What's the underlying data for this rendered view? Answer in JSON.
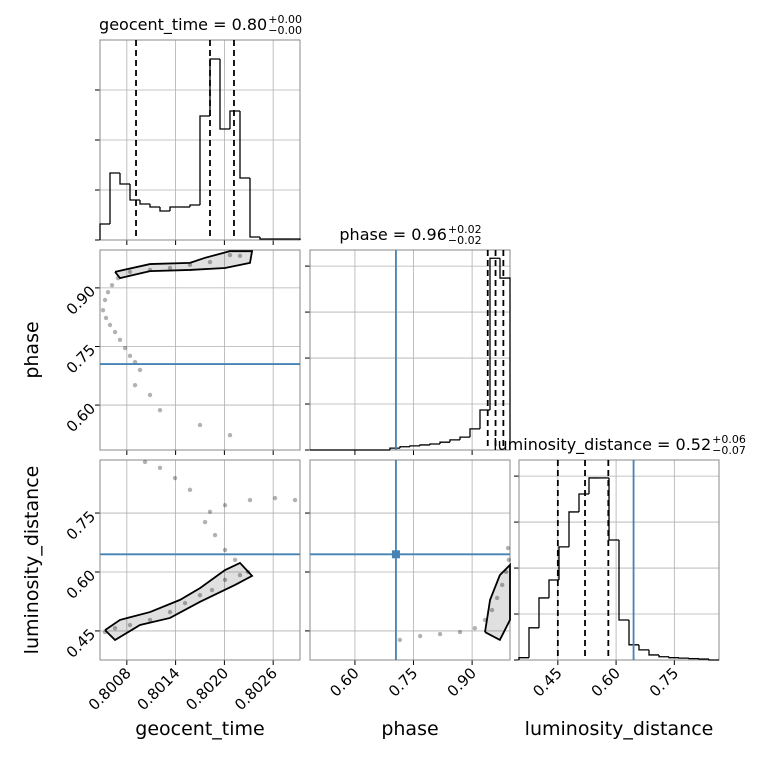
{
  "chart_data": [
    {
      "type": "histogram",
      "title": "geocent_time = 0.80",
      "title_upper": "+0.00",
      "title_lower": "−0.00",
      "bins": [
        0.80047,
        0.800593,
        0.800716,
        0.800839,
        0.800962,
        0.801085,
        0.801208,
        0.801331,
        0.801454,
        0.801577,
        0.8017,
        0.801823,
        0.801946,
        0.802069,
        0.802192,
        0.802315,
        0.802438,
        0.802561,
        0.802684,
        0.802807,
        0.80293
      ],
      "counts": [
        0.32,
        1.34,
        1.12,
        0.8,
        0.72,
        0.66,
        0.58,
        0.66,
        0.66,
        0.7,
        2.48,
        3.62,
        2.22,
        2.58,
        1.24,
        0.06,
        0.02,
        0.02,
        0.02,
        0.02
      ],
      "xlim": [
        0.80047,
        0.80293
      ],
      "xticks": [
        0.8008,
        0.8014,
        {
          "value": 0.802,
          "label": "0.8020"
        },
        0.8026
      ],
      "ylim": [
        0,
        4
      ],
      "yticks": [
        0,
        1,
        2,
        3
      ],
      "quantiles": [
        0.800913,
        0.801823,
        0.802118
      ],
      "color": "#000000",
      "grid": true
    },
    {
      "type": "scatter",
      "x": [
        0.802069,
        0.802192,
        0.801823,
        0.801577,
        0.801331,
        0.801085,
        0.800839,
        0.800691,
        0.800618,
        0.800568,
        0.800532,
        0.800507,
        0.800544,
        0.800593,
        0.800655,
        0.800716,
        0.800778,
        0.800839,
        0.800901,
        0.800962,
        0.800901,
        0.801085,
        0.801208,
        0.8017,
        0.802069
      ],
      "y": [
        0.984,
        0.982,
        0.966,
        0.959,
        0.951,
        0.946,
        0.941,
        0.925,
        0.907,
        0.889,
        0.869,
        0.843,
        0.823,
        0.805,
        0.787,
        0.767,
        0.746,
        0.726,
        0.71,
        0.69,
        0.651,
        0.626,
        0.587,
        0.549,
        0.523
      ],
      "contour": {
        "x": [
          0.800655,
          0.801085,
          0.801577,
          0.801762,
          0.802069,
          0.80234,
          0.802315,
          0.802008,
          0.801577,
          0.801085,
          0.800716,
          0.800655
        ],
        "y": [
          0.941,
          0.961,
          0.964,
          0.977,
          0.994,
          0.994,
          0.964,
          0.951,
          0.946,
          0.943,
          0.925,
          0.941
        ]
      },
      "xlim": [
        0.80047,
        0.80293
      ],
      "xticks": [
        0.8008,
        0.8014,
        {
          "value": 0.802,
          "label": "0.8020"
        },
        0.8026
      ],
      "ylim": [
        0.485,
        0.997
      ],
      "yticks": [
        {
          "value": 0.6,
          "label": "0.60"
        },
        0.75,
        {
          "value": 0.9,
          "label": "0.90"
        }
      ],
      "ylabel": "phase",
      "ytruth": 0.705,
      "truth_color": "#4682b4",
      "grid": true
    },
    {
      "type": "histogram",
      "title": "phase = 0.96",
      "title_upper": "+0.02",
      "title_lower": "−0.02",
      "bins": [
        0.485,
        0.5106,
        0.5362,
        0.5618,
        0.5874,
        0.613,
        0.6386,
        0.6642,
        0.6898,
        0.7154,
        0.741,
        0.7666,
        0.7922,
        0.8178,
        0.8434,
        0.869,
        0.8946,
        0.9202,
        0.9458,
        0.9714,
        0.997
      ],
      "counts": [
        0,
        0,
        0,
        0,
        0,
        0,
        0,
        0,
        0.04,
        0.07,
        0.09,
        0.11,
        0.13,
        0.17,
        0.22,
        0.28,
        0.46,
        0.87,
        4.17,
        3.74
      ],
      "xlim": [
        0.485,
        0.997
      ],
      "xticks": [
        {
          "value": 0.6,
          "label": "0.60"
        },
        0.75,
        {
          "value": 0.9,
          "label": "0.90"
        }
      ],
      "ylim": [
        0,
        4.35
      ],
      "yticks": [
        0,
        1,
        2,
        3,
        4
      ],
      "quantiles": [
        0.94,
        0.96,
        0.98
      ],
      "truth": 0.705,
      "truth_color": "#4682b4",
      "color": "#000000",
      "grid": true
    },
    {
      "type": "scatter",
      "x": [
        0.800532,
        0.800655,
        0.800839,
        0.801085,
        0.801331,
        0.801516,
        0.8017,
        0.801848,
        0.802008,
        0.802192,
        0.80229,
        0.802131,
        0.802008,
        0.801885,
        0.801762,
        0.801823,
        0.802008,
        0.802315,
        0.802623,
        0.802869,
        0.801577,
        0.801393,
        0.801208,
        0.801024
      ],
      "y": [
        0.447,
        0.457,
        0.465,
        0.478,
        0.498,
        0.521,
        0.541,
        0.554,
        0.58,
        0.592,
        0.6,
        0.631,
        0.656,
        0.694,
        0.727,
        0.753,
        0.77,
        0.783,
        0.788,
        0.783,
        0.809,
        0.839,
        0.865,
        0.88
      ],
      "contour": {
        "x": [
          0.800532,
          0.800716,
          0.801085,
          0.801454,
          0.8017,
          0.802008,
          0.802192,
          0.80234,
          0.802131,
          0.8017,
          0.801331,
          0.800962,
          0.800655,
          0.800532
        ],
        "y": [
          0.452,
          0.478,
          0.498,
          0.529,
          0.559,
          0.605,
          0.623,
          0.59,
          0.567,
          0.524,
          0.483,
          0.465,
          0.427,
          0.452
        ]
      },
      "xlim": [
        0.80047,
        0.80293
      ],
      "xticks": [
        0.8008,
        0.8014,
        {
          "value": 0.802,
          "label": "0.8020"
        },
        0.8026
      ],
      "ylim": [
        0.376,
        0.885
      ],
      "yticks": [
        0.45,
        {
          "value": 0.6,
          "label": "0.60"
        },
        0.75
      ],
      "xlabel": "geocent_time",
      "ylabel": "luminosity_distance",
      "ytruth": 0.645,
      "truth_color": "#4682b4",
      "grid": true
    },
    {
      "type": "scatter",
      "x": [
        0.715,
        0.767,
        0.818,
        0.869,
        0.907,
        0.933,
        0.951,
        0.964,
        0.977,
        0.987,
        0.994,
        0.992
      ],
      "y": [
        0.427,
        0.437,
        0.442,
        0.447,
        0.457,
        0.478,
        0.503,
        0.534,
        0.567,
        0.6,
        0.631,
        0.661
      ],
      "contour": {
        "x": [
          0.933,
          0.946,
          0.971,
          0.997,
          0.997,
          0.971,
          0.933
        ],
        "y": [
          0.447,
          0.529,
          0.592,
          0.618,
          0.478,
          0.427,
          0.447
        ]
      },
      "xlim": [
        0.485,
        0.997
      ],
      "xticks": [
        {
          "value": 0.6,
          "label": "0.60"
        },
        0.75,
        {
          "value": 0.9,
          "label": "0.90"
        }
      ],
      "ylim": [
        0.376,
        0.885
      ],
      "yticks": [
        0.45,
        {
          "value": 0.6,
          "label": "0.60"
        },
        0.75
      ],
      "xlabel": "phase",
      "xtruth": 0.705,
      "ytruth": 0.645,
      "truth_color": "#4682b4",
      "grid": true
    },
    {
      "type": "histogram",
      "title": "luminosity_distance = 0.52",
      "title_upper": "+0.06",
      "title_lower": "−0.07",
      "bins": [
        0.35,
        0.37575,
        0.4015,
        0.42725,
        0.453,
        0.47875,
        0.5045,
        0.53025,
        0.556,
        0.58175,
        0.6075,
        0.63325,
        0.659,
        0.68475,
        0.7105,
        0.73625,
        0.762,
        0.78775,
        0.8135,
        0.83925,
        0.865
      ],
      "counts": [
        0.05,
        0.7,
        1.35,
        1.74,
        2.46,
        3.22,
        3.61,
        3.96,
        3.96,
        2.61,
        0.87,
        0.33,
        0.22,
        0.11,
        0.07,
        0.05,
        0.04,
        0.03,
        0.02,
        0
      ],
      "xlim": [
        0.35,
        0.865
      ],
      "xticks": [
        0.45,
        {
          "value": 0.6,
          "label": "0.60"
        },
        0.75
      ],
      "ylim": [
        0,
        4.35
      ],
      "yticks": [
        0,
        1,
        2,
        3,
        4
      ],
      "quantiles": [
        0.45,
        0.52,
        0.58
      ],
      "truth": 0.645,
      "truth_color": "#4682b4",
      "color": "#000000",
      "xlabel": "luminosity_distance",
      "grid": true
    }
  ]
}
